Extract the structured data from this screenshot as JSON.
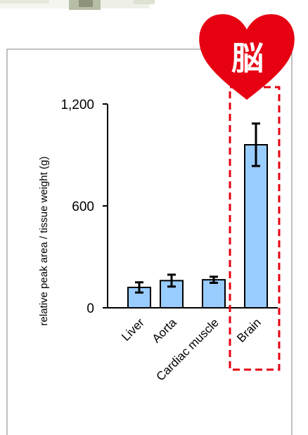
{
  "chart_data": {
    "type": "bar",
    "categories": [
      "Liver",
      "Aorta",
      "Cardiac muscle",
      "Brain"
    ],
    "values": [
      120,
      160,
      165,
      960
    ],
    "error": [
      30,
      35,
      18,
      125
    ],
    "ylabel": "relative peak area / tissue weight (g)",
    "ylim": [
      0,
      1200
    ],
    "yticks": [
      {
        "value": 0,
        "label": "0"
      },
      {
        "value": 600,
        "label": "600"
      },
      {
        "value": 1200,
        "label": "1,200"
      }
    ],
    "grid": false,
    "bar_color": "#99ccff",
    "highlight": {
      "category": "Brain",
      "box_color": "#e60012",
      "badge_text": "脳",
      "badge_color": "#e60012"
    }
  }
}
